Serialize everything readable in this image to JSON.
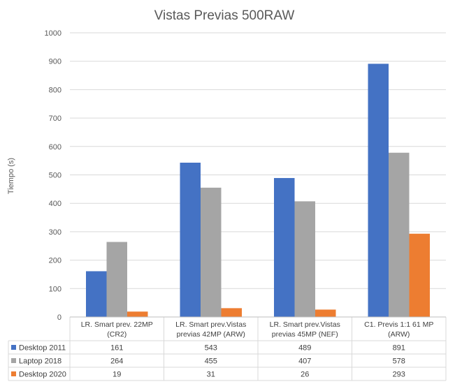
{
  "chart_data": {
    "type": "bar",
    "title": "Vistas Previas 500RAW",
    "ylabel": "Tiempo (s)",
    "xlabel": "",
    "ylim": [
      0,
      1000
    ],
    "yticks": [
      0,
      100,
      200,
      300,
      400,
      500,
      600,
      700,
      800,
      900,
      1000
    ],
    "grid": true,
    "legend": "data-table-left",
    "categories": [
      [
        "LR. Smart prev. 22MP",
        "(CR2)"
      ],
      [
        "LR. Smart prev.Vistas",
        "previas 42MP (ARW)"
      ],
      [
        "LR. Smart prev.Vistas",
        "previas 45MP (NEF)"
      ],
      [
        "C1. Previs 1:1 61 MP",
        "(ARW)"
      ]
    ],
    "series": [
      {
        "name": "Desktop 2011",
        "color": "#4472C4",
        "values": [
          161,
          543,
          489,
          891
        ]
      },
      {
        "name": "Laptop 2018",
        "color": "#A5A5A5",
        "values": [
          264,
          455,
          407,
          578
        ]
      },
      {
        "name": "Desktop 2020",
        "color": "#ED7D31",
        "values": [
          19,
          31,
          26,
          293
        ]
      }
    ]
  }
}
